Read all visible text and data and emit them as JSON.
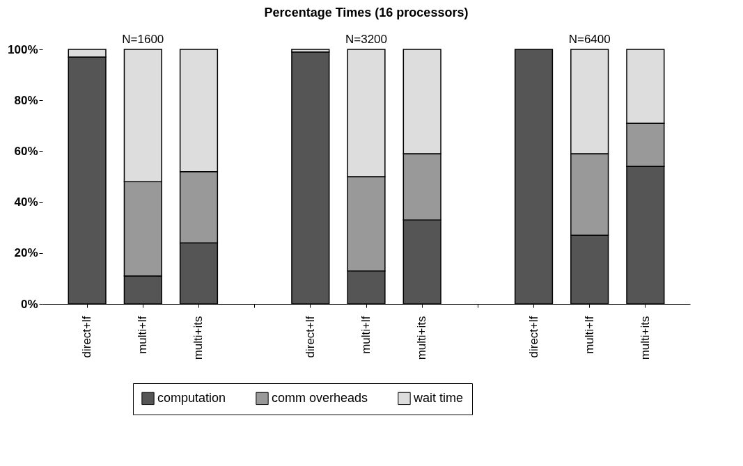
{
  "chart_data": {
    "type": "bar",
    "title": "Percentage Times (16 processors)",
    "stacked": true,
    "categories": [
      "direct+lf",
      "multi+lf",
      "multi+its",
      null,
      "direct+lf",
      "multi+lf",
      "multi+its",
      null,
      "direct+lf",
      "multi+lf",
      "multi+its"
    ],
    "series": [
      {
        "name": "computation",
        "color": "#555555",
        "values": [
          97,
          11,
          24,
          null,
          99,
          13,
          33,
          null,
          100,
          27,
          54
        ]
      },
      {
        "name": "comm overheads",
        "color": "#999999",
        "values": [
          0,
          37,
          28,
          null,
          0,
          37,
          26,
          null,
          0,
          32,
          17
        ]
      },
      {
        "name": "wait time",
        "color": "#dddddd",
        "values": [
          3,
          52,
          48,
          null,
          1,
          50,
          41,
          null,
          0,
          41,
          29
        ]
      }
    ],
    "ylim": [
      0,
      100
    ],
    "yticks": [
      {
        "value": 0,
        "label": "0%"
      },
      {
        "value": 20,
        "label": "20%"
      },
      {
        "value": 40,
        "label": "40%"
      },
      {
        "value": 60,
        "label": "60%"
      },
      {
        "value": 80,
        "label": "80%"
      },
      {
        "value": 100,
        "label": "100%"
      }
    ],
    "annotations": [
      "N=1600",
      "N=3200",
      "N=6400"
    ],
    "legend": "bottom",
    "grid": false
  }
}
